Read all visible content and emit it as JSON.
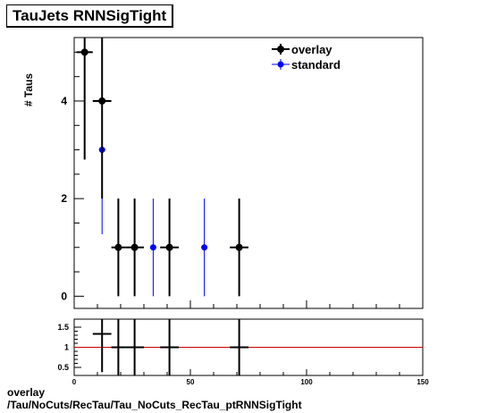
{
  "title": "TauJets RNNSigTight",
  "footer": {
    "line1": "overlay",
    "line2": "/Tau/NoCuts/RecTau/Tau_NoCuts_RecTau_ptRNNSigTight"
  },
  "colors": {
    "overlay": "#000000",
    "standard": "#0000ff",
    "ratio_line": "#cc0000"
  },
  "chart_data": [
    {
      "type": "scatter",
      "title": "TauJets RNNSigTight",
      "xlabel": "",
      "ylabel": "# Taus",
      "xlim": [
        0,
        150
      ],
      "ylim": [
        -0.25,
        5.3
      ],
      "yticks": [
        "0",
        "2",
        "4"
      ],
      "legend": {
        "placement": "top-right"
      },
      "series": [
        {
          "name": "overlay",
          "points": [
            {
              "x": 4.5,
              "y": 5,
              "xerr": 3.5,
              "yerr": 2.2
            },
            {
              "x": 12,
              "y": 4,
              "xerr": 4,
              "yerr": 2
            },
            {
              "x": 19,
              "y": 1,
              "xerr": 3,
              "yerr": 1
            },
            {
              "x": 26,
              "y": 1,
              "xerr": 4,
              "yerr": 1
            },
            {
              "x": 41,
              "y": 1,
              "xerr": 4,
              "yerr": 1
            },
            {
              "x": 71,
              "y": 1,
              "xerr": 4,
              "yerr": 1
            }
          ]
        },
        {
          "name": "standard",
          "points": [
            {
              "x": 12,
              "y": 3,
              "xerr": 0,
              "yerr": 1.73
            },
            {
              "x": 34,
              "y": 1,
              "xerr": 0,
              "yerr": 1
            },
            {
              "x": 56,
              "y": 1,
              "xerr": 0,
              "yerr": 1
            }
          ]
        }
      ]
    },
    {
      "type": "scatter",
      "xlabel": "",
      "ylabel": "",
      "xlim": [
        0,
        150
      ],
      "ylim": [
        0.3,
        1.7
      ],
      "xticks": [
        "0",
        "50",
        "100",
        "150"
      ],
      "yticks": [
        "0.5",
        "1",
        "1.5"
      ],
      "reference_line": 1,
      "series": [
        {
          "name": "ratio",
          "points": [
            {
              "x": 12,
              "y": 1.333,
              "xerr": 4,
              "yerr": 0.95
            },
            {
              "x": 19,
              "y": 1,
              "xerr": 3,
              "yerr": 1
            },
            {
              "x": 26,
              "y": 1,
              "xerr": 4,
              "yerr": 1
            },
            {
              "x": 41,
              "y": 1,
              "xerr": 4,
              "yerr": 1
            },
            {
              "x": 71,
              "y": 1,
              "xerr": 4,
              "yerr": 1
            }
          ]
        }
      ]
    }
  ]
}
